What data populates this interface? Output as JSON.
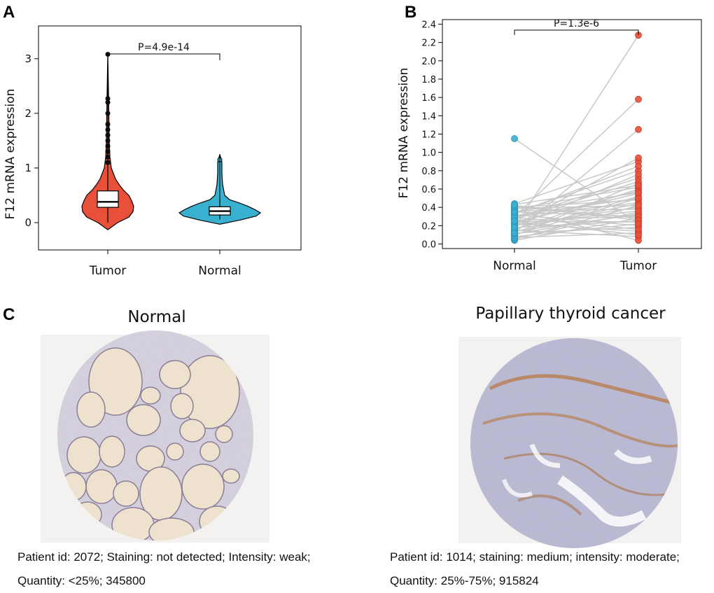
{
  "panels": {
    "a": "A",
    "b": "B",
    "c": "C"
  },
  "chart_data": [
    {
      "type": "violin",
      "panel": "A",
      "ylabel": "F12 mRNA expression",
      "ylim": [
        -0.5,
        3.6
      ],
      "yticks": [
        "0",
        "1",
        "2",
        "3"
      ],
      "categories": [
        "Tumor",
        "Normal"
      ],
      "colors": [
        "#e8503a",
        "#3ab0d0"
      ],
      "boxes": [
        {
          "name": "Tumor",
          "q1": 0.28,
          "median": 0.38,
          "q3": 0.58,
          "whisker_low": 0.0,
          "whisker_high": 1.05,
          "min": -0.13,
          "max": 3.1
        },
        {
          "name": "Normal",
          "q1": 0.14,
          "median": 0.21,
          "q3": 0.29,
          "whisker_low": 0.06,
          "whisker_high": 0.45,
          "min": -0.03,
          "max": 1.25
        }
      ],
      "outliers": {
        "Tumor": [
          1.1,
          1.2,
          1.3,
          1.4,
          1.5,
          1.6,
          1.7,
          1.8,
          2.0,
          2.2,
          2.27,
          3.08
        ],
        "Normal": [
          1.15
        ]
      },
      "annotation": "P=4.9e-14"
    },
    {
      "type": "paired-dot",
      "panel": "B",
      "ylabel": "F12 mRNA expression",
      "ylim": [
        -0.05,
        2.45
      ],
      "yticks": [
        "0.0",
        "0.2",
        "0.4",
        "0.6",
        "0.8",
        "1.0",
        "1.2",
        "1.4",
        "1.6",
        "1.8",
        "2.0",
        "2.2",
        "2.4"
      ],
      "categories": [
        "Normal",
        "Tumor"
      ],
      "colors": [
        "#3ab0d0",
        "#e8503a"
      ],
      "pairs": [
        [
          0.04,
          0.28
        ],
        [
          0.06,
          0.35
        ],
        [
          0.08,
          0.22
        ],
        [
          0.1,
          0.5
        ],
        [
          0.12,
          0.18
        ],
        [
          0.14,
          0.32
        ],
        [
          0.16,
          0.6
        ],
        [
          0.18,
          0.25
        ],
        [
          0.2,
          0.4
        ],
        [
          0.22,
          0.14
        ],
        [
          0.24,
          0.55
        ],
        [
          0.26,
          0.3
        ],
        [
          0.28,
          0.72
        ],
        [
          0.3,
          0.45
        ],
        [
          0.32,
          0.2
        ],
        [
          0.34,
          0.8
        ],
        [
          0.36,
          0.38
        ],
        [
          0.38,
          0.62
        ],
        [
          0.4,
          0.48
        ],
        [
          0.42,
          0.28
        ],
        [
          0.44,
          0.9
        ],
        [
          0.05,
          0.42
        ],
        [
          0.07,
          0.12
        ],
        [
          0.09,
          0.66
        ],
        [
          0.11,
          0.33
        ],
        [
          0.13,
          0.52
        ],
        [
          0.15,
          0.08
        ],
        [
          0.17,
          0.44
        ],
        [
          0.19,
          0.76
        ],
        [
          0.21,
          0.36
        ],
        [
          0.23,
          0.58
        ],
        [
          0.25,
          0.24
        ],
        [
          0.27,
          0.68
        ],
        [
          0.29,
          0.16
        ],
        [
          0.31,
          0.5
        ],
        [
          0.33,
          0.85
        ],
        [
          0.35,
          0.3
        ],
        [
          0.37,
          0.04
        ],
        [
          0.39,
          0.42
        ],
        [
          0.41,
          0.26
        ],
        [
          0.43,
          0.64
        ],
        [
          0.2,
          0.94
        ],
        [
          0.3,
          1.58
        ],
        [
          0.18,
          2.28
        ],
        [
          0.12,
          1.25
        ],
        [
          1.15,
          0.22
        ],
        [
          0.25,
          0.1
        ],
        [
          0.35,
          0.56
        ]
      ],
      "annotation": "P=1.3e-6"
    }
  ],
  "panel_c": {
    "left_title": "Normal",
    "right_title": "Papillary thyroid cancer",
    "left_caption_line1": "Patient id: 2072; Staining: not detected; Intensity: weak;",
    "left_caption_line2": "Quantity: <25%; 345800",
    "right_caption_line1": "Patient id: 1014; staining: medium; intensity: moderate;",
    "right_caption_line2": "Quantity: 25%-75%; 915824"
  }
}
